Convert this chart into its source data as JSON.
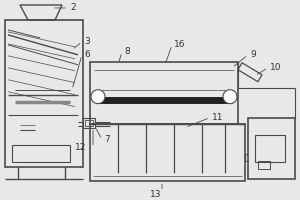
{
  "bg_color": "#e8e8e8",
  "line_color": "#4a4a4a",
  "dark_color": "#222222",
  "label_color": "#333333",
  "label_fontsize": 6.5,
  "fig_width": 3.0,
  "fig_height": 2.0,
  "dpi": 100
}
